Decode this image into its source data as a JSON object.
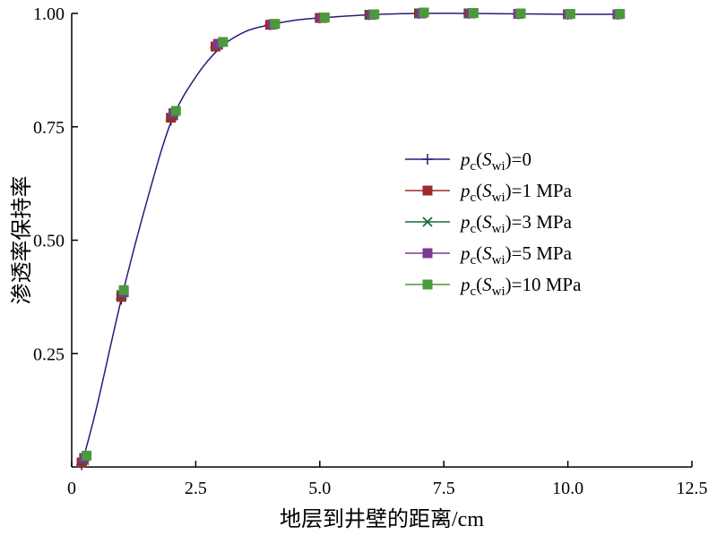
{
  "chart_data": {
    "type": "line",
    "xlabel": "地层到井壁的距离/cm",
    "ylabel": "渗透率保持率",
    "xlim": [
      0,
      12.5
    ],
    "ylim": [
      0,
      1.0
    ],
    "x_ticks": [
      "0",
      "2.5",
      "5.0",
      "7.5",
      "10.0",
      "12.5"
    ],
    "x_tick_values": [
      0,
      2.5,
      5.0,
      7.5,
      10.0,
      12.5
    ],
    "y_ticks": [
      "0.25",
      "0.50",
      "0.75",
      "1.00"
    ],
    "y_tick_values": [
      0.25,
      0.5,
      0.75,
      1.0
    ],
    "grid": false,
    "legend_position": "right",
    "curve": {
      "x": [
        0.2,
        0.5,
        1.0,
        1.5,
        2.0,
        2.5,
        3.0,
        3.5,
        4.0,
        4.5,
        5.0,
        6.0,
        7.0,
        8.0,
        9.0,
        10.0,
        11.0
      ],
      "y": [
        0.005,
        0.13,
        0.37,
        0.58,
        0.76,
        0.86,
        0.925,
        0.96,
        0.975,
        0.985,
        0.99,
        0.997,
        1.0,
        1.0,
        0.999,
        0.998,
        0.998
      ]
    },
    "series": [
      {
        "name": "=0",
        "label_parts": [
          "p",
          "c",
          "(",
          "S",
          "wi",
          ")=0"
        ],
        "color": "#2a1a78",
        "marker": "plus",
        "x": [
          0.2,
          1.0,
          2.0,
          2.9,
          4.0,
          5.0,
          6.0,
          7.0,
          8.0,
          9.0,
          10.0,
          11.0
        ],
        "y": [
          0.005,
          0.37,
          0.765,
          0.925,
          0.975,
          0.99,
          0.997,
          1.0,
          1.0,
          0.999,
          0.998,
          0.998
        ]
      },
      {
        "name": "=1 MPa",
        "label_parts": [
          "p",
          "c",
          "(",
          "S",
          "wi",
          ")=1 MPa"
        ],
        "color": "#9e2a2b",
        "marker": "square",
        "x": [
          0.2,
          1.0,
          2.0,
          2.9,
          4.0,
          5.0,
          6.0,
          7.0,
          8.0,
          9.0,
          10.0,
          11.0
        ],
        "y": [
          0.01,
          0.375,
          0.77,
          0.927,
          0.975,
          0.99,
          0.997,
          1.0,
          1.0,
          0.999,
          0.998,
          0.998
        ]
      },
      {
        "name": "=3 MPa",
        "label_parts": [
          "p",
          "c",
          "(",
          "S",
          "wi",
          ")=3 MPa"
        ],
        "color": "#1a6b3a",
        "marker": "x",
        "x": [
          0.25,
          1.0,
          2.05,
          2.95,
          4.05,
          5.05,
          6.0,
          7.0,
          8.0,
          9.0,
          10.0,
          11.0
        ],
        "y": [
          0.015,
          0.38,
          0.775,
          0.93,
          0.975,
          0.99,
          0.997,
          1.0,
          1.0,
          0.999,
          0.998,
          0.998
        ]
      },
      {
        "name": "=5 MPa",
        "label_parts": [
          "p",
          "c",
          "(",
          "S",
          "wi",
          ")=5 MPa"
        ],
        "color": "#7b3a92",
        "marker": "square",
        "x": [
          0.25,
          1.05,
          2.05,
          2.95,
          4.05,
          5.05,
          6.05,
          7.05,
          8.05,
          9.0,
          10.0,
          11.0
        ],
        "y": [
          0.02,
          0.385,
          0.78,
          0.933,
          0.976,
          0.99,
          0.997,
          1.0,
          1.0,
          0.999,
          0.998,
          0.998
        ]
      },
      {
        "name": "=10 MPa",
        "label_parts": [
          "p",
          "c",
          "(",
          "S",
          "wi",
          ")=10 MPa"
        ],
        "color": "#4a9a3a",
        "marker": "square",
        "x": [
          0.3,
          1.05,
          2.1,
          3.05,
          4.1,
          5.1,
          6.1,
          7.1,
          8.1,
          9.05,
          10.05,
          11.05
        ],
        "y": [
          0.025,
          0.39,
          0.785,
          0.937,
          0.977,
          0.991,
          0.998,
          1.002,
          1.001,
          1.0,
          0.999,
          0.999
        ]
      }
    ]
  }
}
